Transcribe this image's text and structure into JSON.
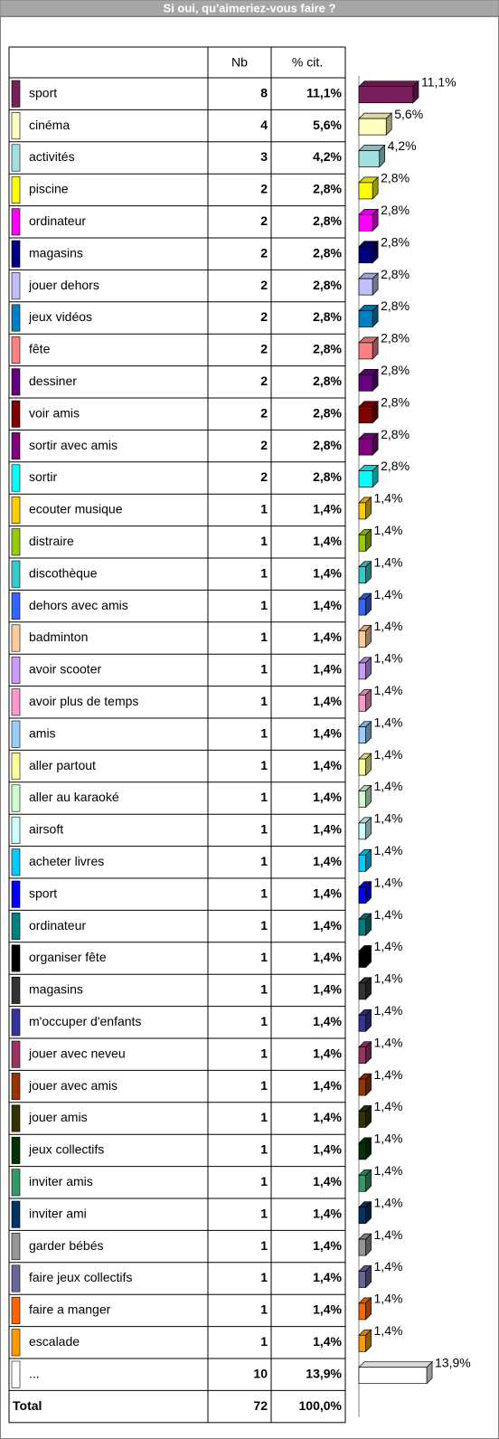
{
  "chart_data": {
    "type": "bar",
    "title": "Si oui, qu'aimeriez-vous faire ?",
    "columns": [
      "Nb",
      "% cit."
    ],
    "categories": [
      "sport",
      "cinéma",
      "activités",
      "piscine",
      "ordinateur",
      "magasins",
      "jouer dehors",
      "jeux vidéos",
      "fête",
      "dessiner",
      "voir amis",
      "sortir avec amis",
      "sortir",
      "ecouter musique",
      "distraire",
      "discothèque",
      "dehors avec amis",
      "badminton",
      "avoir scooter",
      "avoir plus de temps",
      "amis",
      "aller partout",
      "aller au karaoké",
      "airsoft",
      "acheter livres",
      " sport",
      " ordinateur",
      "organiser fête",
      "magasins",
      "m'occuper d'enfants",
      "jouer avec neveu",
      "jouer avec amis",
      "jouer amis",
      "jeux collectifs",
      "inviter amis",
      "inviter ami",
      "garder bébés",
      "faire jeux collectifs",
      "faire a manger",
      "escalade",
      "..."
    ],
    "counts": [
      8,
      4,
      3,
      2,
      2,
      2,
      2,
      2,
      2,
      2,
      2,
      2,
      2,
      1,
      1,
      1,
      1,
      1,
      1,
      1,
      1,
      1,
      1,
      1,
      1,
      1,
      1,
      1,
      1,
      1,
      1,
      1,
      1,
      1,
      1,
      1,
      1,
      1,
      1,
      1,
      10
    ],
    "values": [
      11.1,
      5.6,
      4.2,
      2.8,
      2.8,
      2.8,
      2.8,
      2.8,
      2.8,
      2.8,
      2.8,
      2.8,
      2.8,
      1.4,
      1.4,
      1.4,
      1.4,
      1.4,
      1.4,
      1.4,
      1.4,
      1.4,
      1.4,
      1.4,
      1.4,
      1.4,
      1.4,
      1.4,
      1.4,
      1.4,
      1.4,
      1.4,
      1.4,
      1.4,
      1.4,
      1.4,
      1.4,
      1.4,
      1.4,
      1.4,
      13.9
    ],
    "value_labels": [
      "11,1%",
      "5,6%",
      "4,2%",
      "2,8%",
      "2,8%",
      "2,8%",
      "2,8%",
      "2,8%",
      "2,8%",
      "2,8%",
      "2,8%",
      "2,8%",
      "2,8%",
      "1,4%",
      "1,4%",
      "1,4%",
      "1,4%",
      "1,4%",
      "1,4%",
      "1,4%",
      "1,4%",
      "1,4%",
      "1,4%",
      "1,4%",
      "1,4%",
      "1,4%",
      "1,4%",
      "1,4%",
      "1,4%",
      "1,4%",
      "1,4%",
      "1,4%",
      "1,4%",
      "1,4%",
      "1,4%",
      "1,4%",
      "1,4%",
      "1,4%",
      "1,4%",
      "1,4%",
      "13,9%"
    ],
    "colors": [
      "#7a1f5c",
      "#ffffc0",
      "#a0e0e0",
      "#ffff00",
      "#ff00ff",
      "#000080",
      "#c0c0ff",
      "#0080c0",
      "#ff8080",
      "#660080",
      "#800000",
      "#800080",
      "#00ffff",
      "#ffcc00",
      "#99cc00",
      "#33cccc",
      "#3366ff",
      "#ffcc99",
      "#cc99ff",
      "#ff99cc",
      "#99ccff",
      "#ffff99",
      "#ccffcc",
      "#ccffff",
      "#00ccff",
      "#0000ff",
      "#008080",
      "#000000",
      "#333333",
      "#333399",
      "#993366",
      "#993300",
      "#333300",
      "#003300",
      "#339966",
      "#003366",
      "#969696",
      "#666699",
      "#ff6600",
      "#ff9900",
      "#ffffff"
    ],
    "total": {
      "label": "Total",
      "count": 72,
      "percent": "100,0%"
    }
  }
}
